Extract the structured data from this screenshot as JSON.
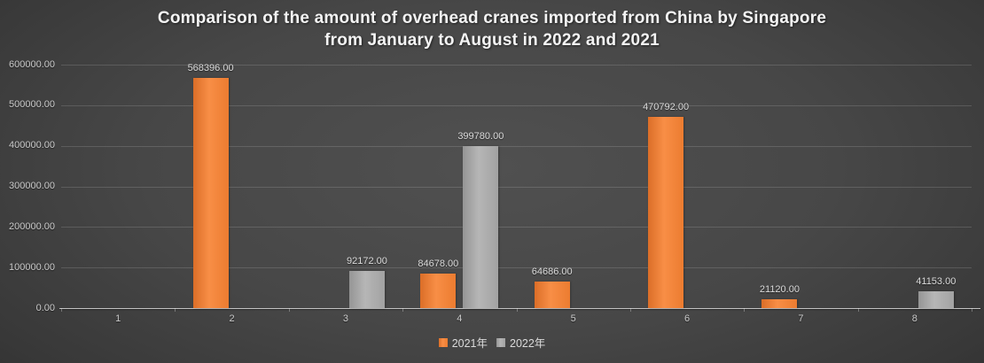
{
  "title": {
    "line1": "Comparison of the amount of overhead cranes imported from China by Singapore",
    "line2": "from January to August in 2022 and 2021"
  },
  "chart_data": {
    "type": "bar",
    "categories": [
      "1",
      "2",
      "3",
      "4",
      "5",
      "6",
      "7",
      "8"
    ],
    "series": [
      {
        "name": "2021年",
        "color": "#ED7D31",
        "gradient": [
          "#DB6E28",
          "#F88E46",
          "#EC7C30"
        ],
        "values": [
          null,
          568396,
          null,
          84678,
          64686,
          470792,
          21120,
          null
        ]
      },
      {
        "name": "2022年",
        "color": "#A5A5A5",
        "gradient": [
          "#959595",
          "#B6B6B6",
          "#A2A2A2"
        ],
        "values": [
          null,
          null,
          92172,
          399780,
          null,
          null,
          null,
          41153
        ]
      }
    ],
    "ylim": [
      0,
      600000
    ],
    "ytick_step": 100000,
    "ytick_labels": [
      "0.00",
      "100000.00",
      "200000.00",
      "300000.00",
      "400000.00",
      "500000.00",
      "600000.00"
    ],
    "data_label_decimals": 2,
    "grid": true,
    "legend_position": "bottom"
  }
}
